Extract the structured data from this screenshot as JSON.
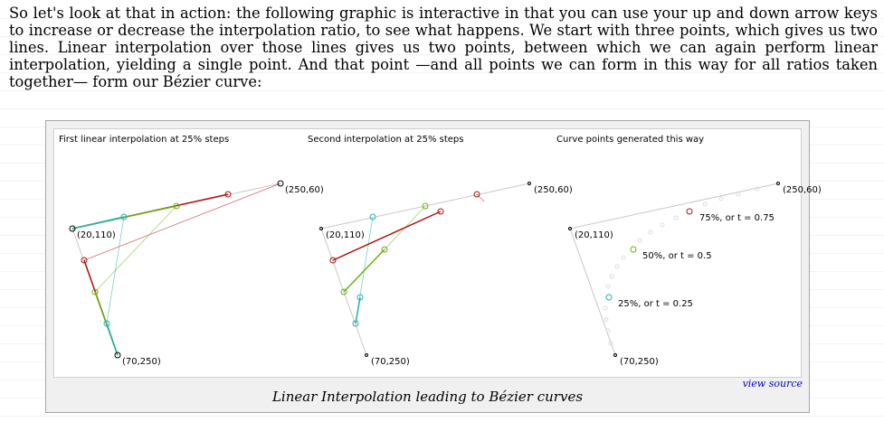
{
  "intro_text": "So let's look at that in action: the following graphic is interactive in that you can use your up and down arrow keys to increase or decrease the interpolation ratio, to see what happens. We start with three points, which gives us two lines. Linear interpolation over those lines gives us two points, between which we can again perform linear interpolation, yielding a single point. And that point —and all points we can form in this way for all ratios taken together— form our Bézier curve:",
  "figure": {
    "caption": "Linear Interpolation leading to Bézier curves",
    "view_source": "view source",
    "panels": [
      {
        "title": "First linear interpolation at 25% steps"
      },
      {
        "title": "Second interpolation at 25% steps"
      },
      {
        "title": "Curve points generated this way"
      }
    ],
    "point_labels": {
      "p1": "(20,110)",
      "p2": "(250,60)",
      "p3": "(70,250)"
    },
    "ratio_labels": [
      "25%, or t = 0.25",
      "50%, or t = 0.5",
      "75%, or t = 0.75"
    ],
    "colors": {
      "t25": "#22b2b2",
      "t50": "#6ab012",
      "t75": "#b01212",
      "guide": "#c8c8c8",
      "curve_dots": "#dddddd"
    }
  }
}
